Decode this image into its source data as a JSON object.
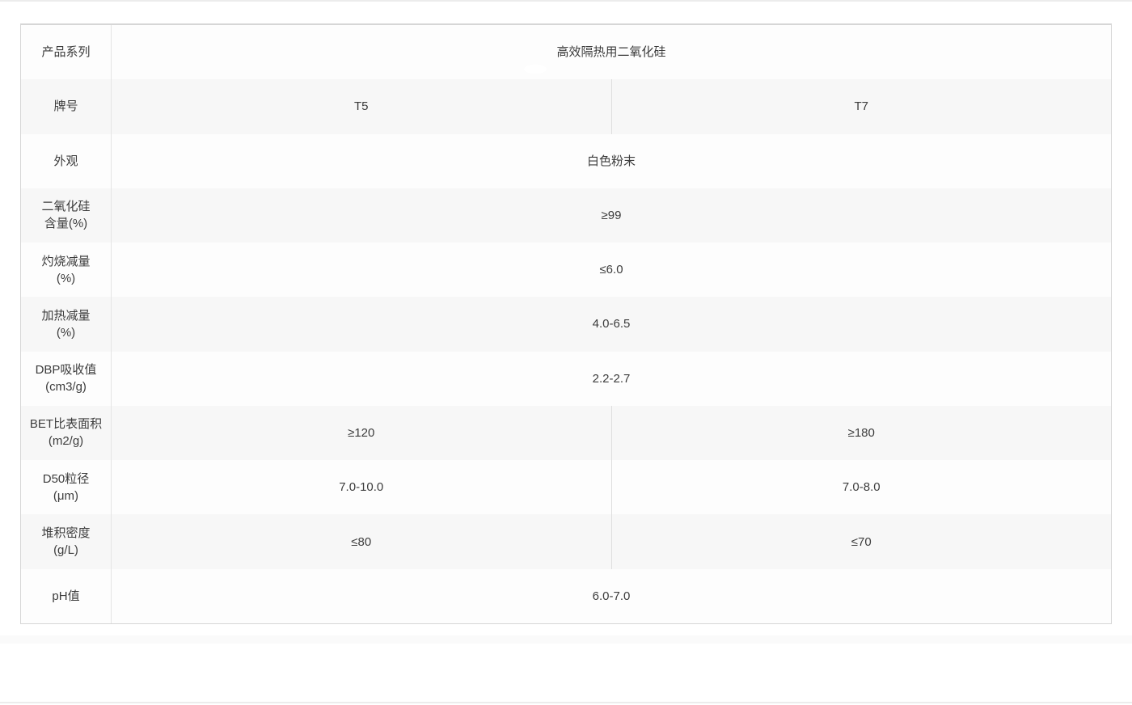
{
  "page": {
    "background_color": "#ffffff",
    "band_color": "#f7f7f7",
    "outer_border_color": "#d6d6d6",
    "inner_border_color": "#e4e4e4",
    "divider_color": "#dedede",
    "text_color": "#3c3c3c"
  },
  "table": {
    "rows": [
      {
        "label": "产品系列",
        "span": "高效隔热用二氧化硅"
      },
      {
        "label": "牌号",
        "t5": "T5",
        "t7": "T7"
      },
      {
        "label": "外观",
        "span": "白色粉末"
      },
      {
        "label": "二氧化硅\n含量(%)",
        "span": "≥99"
      },
      {
        "label": "灼烧减量\n(%)",
        "span": "≤6.0"
      },
      {
        "label": "加热减量\n(%)",
        "span": "4.0-6.5"
      },
      {
        "label": "DBP吸收值\n(cm3/g)",
        "span": "2.2-2.7"
      },
      {
        "label": "BET比表面积\n(m2/g)",
        "t5": "≥120",
        "t7": "≥180"
      },
      {
        "label": "D50粒径\n(μm)",
        "t5": "7.0-10.0",
        "t7": "7.0-8.0"
      },
      {
        "label": "堆积密度\n(g/L)",
        "t5": "≤80",
        "t7": "≤70"
      },
      {
        "label": "pH值",
        "span": "6.0-7.0"
      }
    ]
  }
}
